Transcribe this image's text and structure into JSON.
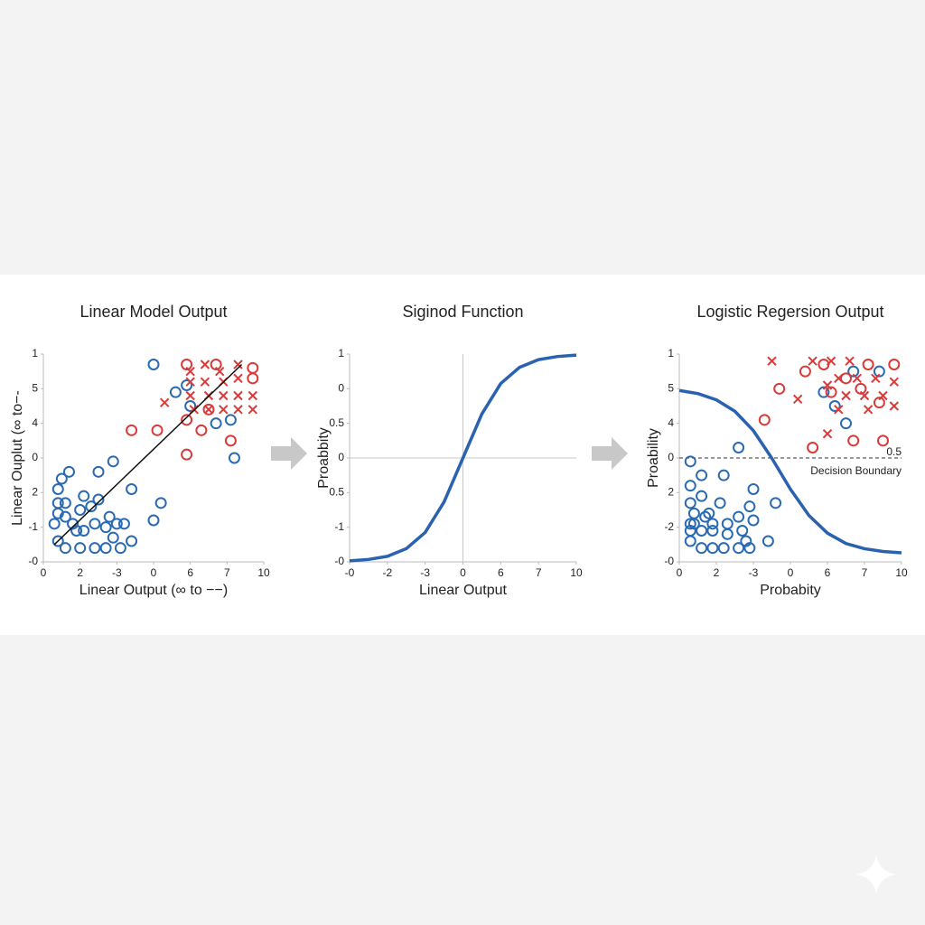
{
  "chart_data": [
    {
      "type": "scatter",
      "title": "Linear Model Output",
      "xlabel": "Linear Output (∞ to −−)",
      "ylabel": "Linear Ouplut (∞ to−-",
      "xlim": [
        0,
        6
      ],
      "xticks": [
        0,
        {
          "value": 1,
          "label": "2"
        },
        {
          "value": 2,
          "label": "-3"
        },
        {
          "value": 3,
          "label": "0"
        },
        {
          "value": 4,
          "label": "6"
        },
        {
          "value": 5,
          "label": "7"
        },
        {
          "value": 6,
          "label": "10"
        }
      ],
      "ylim": [
        0,
        6
      ],
      "yticks": [
        {
          "value": 0,
          "label": "-0"
        },
        {
          "value": 1,
          "label": "-1"
        },
        2,
        {
          "value": 3,
          "label": "0"
        },
        4,
        5,
        {
          "value": 6,
          "label": "1"
        }
      ],
      "series": [
        {
          "marker": "circle",
          "color": "#2a6ab5",
          "x": [
            0.4,
            0.5,
            0.7,
            0.4,
            0.6,
            0.4,
            0.6,
            0.3,
            0.8,
            1.1,
            1.0,
            1.3,
            1.5,
            0.9,
            1.1,
            1.4,
            1.7,
            2.0,
            2.2,
            0.4,
            0.6,
            1.0,
            1.4,
            1.7,
            2.1,
            2.4,
            1.9,
            1.5,
            1.9,
            2.4,
            3.0,
            3.2,
            3.0,
            3.6,
            3.9,
            4.0,
            4.7,
            5.1,
            5.2,
            1.8
          ],
          "values": [
            2.1,
            2.4,
            2.6,
            1.7,
            1.7,
            1.4,
            1.3,
            1.1,
            1.1,
            1.9,
            1.5,
            1.6,
            1.8,
            0.9,
            0.9,
            1.1,
            1.0,
            1.1,
            1.1,
            0.6,
            0.4,
            0.4,
            0.4,
            0.4,
            0.4,
            0.6,
            0.7,
            2.6,
            2.9,
            2.1,
            1.2,
            1.7,
            5.7,
            4.9,
            5.1,
            4.5,
            4.0,
            4.1,
            3.0,
            1.3
          ]
        },
        {
          "marker": "circle",
          "color": "#d93a3a",
          "x": [
            2.4,
            3.1,
            3.9,
            4.7,
            5.7,
            5.7,
            3.9,
            4.3,
            4.5,
            3.9,
            5.1
          ],
          "values": [
            3.8,
            3.8,
            5.7,
            5.7,
            5.6,
            5.3,
            4.1,
            3.8,
            4.4,
            3.1,
            3.5
          ]
        },
        {
          "marker": "cross",
          "color": "#d93a3a",
          "x": [
            4.0,
            4.4,
            4.8,
            5.3,
            4.0,
            4.4,
            4.9,
            5.3,
            4.0,
            4.5,
            4.9,
            5.3,
            5.7,
            4.1,
            4.5,
            4.9,
            5.3,
            5.7,
            3.3
          ],
          "values": [
            5.5,
            5.7,
            5.5,
            5.7,
            5.2,
            5.2,
            5.2,
            5.3,
            4.8,
            4.8,
            4.8,
            4.8,
            4.8,
            4.4,
            4.4,
            4.4,
            4.4,
            4.4,
            4.6
          ]
        },
        {
          "marker": "line",
          "color": "#111111",
          "x": [
            0.3,
            5.4
          ],
          "values": [
            0.5,
            5.7
          ]
        }
      ]
    },
    {
      "type": "line",
      "title": "Siginod Function",
      "xlabel": "Linear Output",
      "ylabel": "Proabbity",
      "xlim": [
        0,
        6
      ],
      "xticks": [
        {
          "value": 0,
          "label": "-0"
        },
        {
          "value": 1,
          "label": "-2"
        },
        {
          "value": 2,
          "label": "-3"
        },
        {
          "value": 3,
          "label": "0"
        },
        {
          "value": 4,
          "label": "6"
        },
        {
          "value": 5,
          "label": "7"
        },
        {
          "value": 6,
          "label": "10"
        }
      ],
      "ylim": [
        0,
        6
      ],
      "yticks": [
        {
          "value": 0,
          "label": "-0"
        },
        {
          "value": 1,
          "label": "-1"
        },
        {
          "value": 2,
          "label": "0.5"
        },
        {
          "value": 3,
          "label": "0"
        },
        {
          "value": 4,
          "label": "0.5"
        },
        {
          "value": 5,
          "label": "0"
        },
        {
          "value": 6,
          "label": "1"
        }
      ],
      "vline": 3,
      "hline": 3,
      "series": [
        {
          "marker": "line",
          "color": "#2a62b0",
          "x": [
            0,
            0.5,
            1,
            1.5,
            2,
            2.5,
            3,
            3.5,
            4,
            4.5,
            5,
            5.5,
            6
          ],
          "values": [
            0.03,
            0.07,
            0.16,
            0.38,
            0.85,
            1.73,
            3,
            4.27,
            5.15,
            5.62,
            5.84,
            5.93,
            5.97
          ]
        }
      ]
    },
    {
      "type": "scatter",
      "title": "Logistic Regersion Output",
      "xlabel": "Probabity",
      "ylabel": "Proability",
      "xlim": [
        0,
        6
      ],
      "xticks": [
        0,
        {
          "value": 1,
          "label": "2"
        },
        {
          "value": 2,
          "label": "-3"
        },
        {
          "value": 3,
          "label": "0"
        },
        {
          "value": 4,
          "label": "6"
        },
        {
          "value": 5,
          "label": "7"
        },
        {
          "value": 6,
          "label": "10"
        }
      ],
      "ylim": [
        0,
        6
      ],
      "yticks": [
        {
          "value": 0,
          "label": "-0"
        },
        {
          "value": 1,
          "label": "-2"
        },
        2,
        {
          "value": 3,
          "label": "0"
        },
        4,
        5,
        {
          "value": 6,
          "label": "1"
        }
      ],
      "hline": 3,
      "annotations": [
        "0.5",
        "Decision Boundary"
      ],
      "series": [
        {
          "marker": "circle",
          "color": "#2a6ab5",
          "x": [
            0.3,
            0.3,
            0.6,
            1.2,
            0.3,
            0.6,
            0.4,
            0.4,
            0.7,
            0.8,
            0.3,
            0.6,
            0.9,
            1.1,
            1.3,
            1.6,
            1.9,
            2.0,
            1.3,
            1.7,
            2.0,
            0.3,
            0.6,
            0.9,
            1.2,
            1.6,
            1.9,
            2.4,
            2.6,
            0.9,
            1.6,
            3.9,
            4.5,
            4.2,
            5.4,
            4.7,
            0.3,
            1.8
          ],
          "values": [
            2.9,
            2.2,
            2.5,
            2.5,
            1.7,
            1.9,
            1.4,
            1.1,
            1.3,
            1.4,
            1.1,
            0.9,
            1.1,
            1.7,
            1.1,
            1.3,
            1.6,
            2.1,
            0.8,
            0.9,
            1.2,
            0.6,
            0.4,
            0.4,
            0.4,
            0.4,
            0.4,
            0.6,
            1.7,
            0.9,
            3.3,
            4.9,
            4.0,
            4.5,
            5.5,
            5.5,
            0.9,
            0.6
          ]
        },
        {
          "marker": "circle",
          "color": "#d93a3a",
          "x": [
            2.3,
            2.7,
            3.4,
            3.9,
            4.5,
            5.1,
            5.8,
            5.4,
            4.7,
            5.5,
            3.6,
            4.1,
            4.9
          ],
          "values": [
            4.1,
            5.0,
            5.5,
            5.7,
            5.3,
            5.7,
            5.7,
            4.6,
            3.5,
            3.5,
            3.3,
            4.9,
            5.0
          ]
        },
        {
          "marker": "cross",
          "color": "#d93a3a",
          "x": [
            2.5,
            3.2,
            3.6,
            4.1,
            4.6,
            4.3,
            4.8,
            5.3,
            5.8,
            4.0,
            4.5,
            5.0,
            5.5,
            5.8,
            5.1,
            4.3,
            4.0
          ],
          "values": [
            5.8,
            4.7,
            5.8,
            5.8,
            5.8,
            5.3,
            5.3,
            5.3,
            5.2,
            5.1,
            4.8,
            4.8,
            4.8,
            4.5,
            4.4,
            4.4,
            3.7
          ]
        },
        {
          "marker": "line",
          "color": "#2a62b0",
          "x": [
            0,
            0.5,
            1,
            1.5,
            2,
            2.5,
            3,
            3.5,
            4,
            4.5,
            5,
            5.5,
            6
          ],
          "values": [
            4.95,
            4.86,
            4.68,
            4.35,
            3.79,
            2.99,
            2.1,
            1.34,
            0.83,
            0.53,
            0.38,
            0.3,
            0.26
          ]
        }
      ]
    }
  ]
}
